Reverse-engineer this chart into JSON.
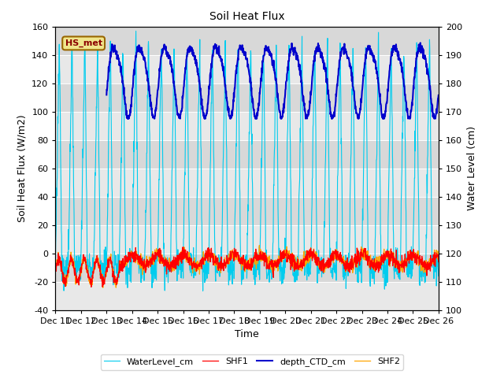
{
  "title": "Soil Heat Flux",
  "ylabel_left": "Soil Heat Flux (W/m2)",
  "ylabel_right": "Water Level (cm)",
  "xlabel": "Time",
  "ylim_left": [
    -40,
    160
  ],
  "ylim_right": [
    100,
    200
  ],
  "colors": {
    "SHF1": "#ff0000",
    "SHF2": "#ffa500",
    "depth_CTD_cm": "#0000cc",
    "WaterLevel_cm": "#00ccee"
  },
  "annotation_text": "HS_met",
  "fig_facecolor": "#ffffff",
  "plot_facecolor": "#e8e8e8",
  "band_colors": [
    "#e8e8e8",
    "#d8d8d8"
  ],
  "grid_color": "#ffffff",
  "title_fontsize": 10,
  "axis_fontsize": 8,
  "label_fontsize": 9
}
